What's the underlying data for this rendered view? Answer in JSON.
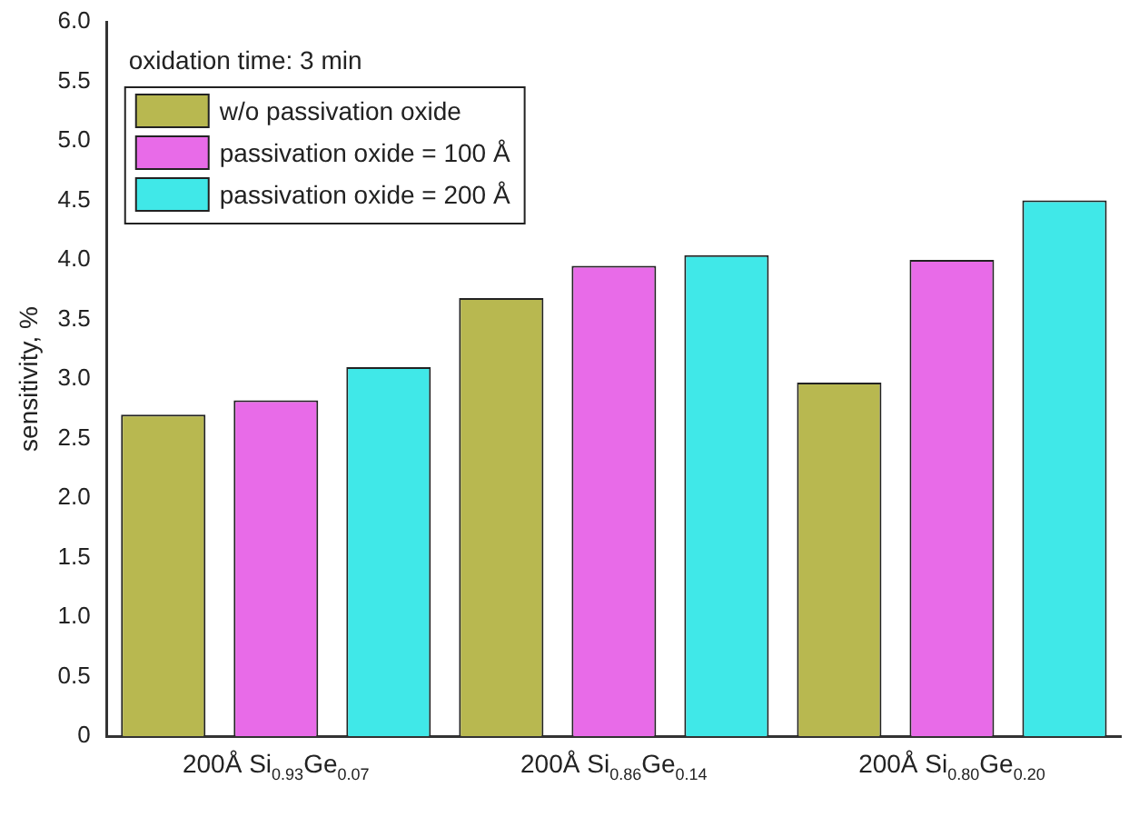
{
  "chart_data": {
    "type": "bar",
    "ylabel": "sensitivity, %",
    "annotations": [
      "oxidation time: 3 min"
    ],
    "categories": [
      "200Å Si$_{0.93}$Ge$_{0.07}$",
      "200Å Si$_{0.86}$Ge$_{0.14}$",
      "200Å Si$_{0.80}$Ge$_{0.20}$"
    ],
    "series": [
      {
        "name": "w/o passivation oxide",
        "color": "#b8b850",
        "values": [
          2.7,
          3.68,
          2.97
        ]
      },
      {
        "name": "passivation oxide = 100 Å",
        "color": "#e86be8",
        "values": [
          2.82,
          3.95,
          4.0
        ]
      },
      {
        "name": "passivation oxide = 200 Å",
        "color": "#40e8e8",
        "values": [
          3.1,
          4.04,
          4.5
        ]
      }
    ],
    "ylim": [
      0,
      6
    ],
    "yticks": [
      0,
      0.5,
      {
        "value": 1,
        "label": "1.0"
      },
      1.5,
      {
        "value": 2,
        "label": "2.0"
      },
      2.5,
      {
        "value": 3,
        "label": "3.0"
      },
      3.5,
      {
        "value": 4,
        "label": "4.0"
      },
      4.5,
      {
        "value": 5,
        "label": "5.0"
      },
      5.5,
      {
        "value": 6,
        "label": "6.0"
      }
    ],
    "grid": false,
    "legend": "top left"
  }
}
